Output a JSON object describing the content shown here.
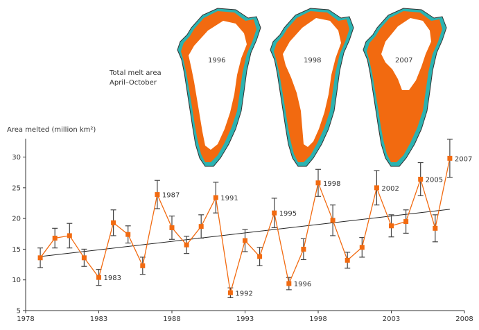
{
  "chart_data": {
    "type": "line",
    "ylabel": "Area melted (million km²)",
    "x_ticks": [
      1978,
      1983,
      1988,
      1993,
      1998,
      2003,
      2008
    ],
    "y_ticks": [
      5,
      10,
      15,
      20,
      25,
      30
    ],
    "xlim": [
      1978,
      2008
    ],
    "ylim": [
      5,
      33
    ],
    "series": [
      {
        "x": [
          1979,
          1980,
          1981,
          1982,
          1983,
          1984,
          1985,
          1986,
          1987,
          1988,
          1989,
          1990,
          1991,
          1992,
          1993,
          1994,
          1995,
          1996,
          1997,
          1998,
          1999,
          2000,
          2001,
          2002,
          2003,
          2004,
          2005,
          2006,
          2007
        ],
        "y": [
          13.6,
          16.8,
          17.2,
          13.6,
          10.4,
          19.3,
          17.4,
          12.3,
          23.9,
          18.5,
          15.7,
          18.7,
          23.4,
          7.9,
          16.4,
          13.8,
          20.9,
          9.4,
          15.0,
          25.8,
          19.7,
          13.2,
          15.3,
          25.0,
          18.8,
          19.5,
          26.4,
          18.4,
          29.8
        ],
        "error": [
          1.6,
          1.6,
          2.0,
          1.4,
          1.3,
          2.1,
          1.4,
          1.4,
          2.3,
          1.9,
          1.4,
          1.9,
          2.5,
          0.8,
          1.8,
          1.5,
          2.4,
          1.0,
          1.7,
          2.2,
          2.5,
          1.3,
          1.6,
          2.8,
          1.8,
          1.9,
          2.7,
          2.2,
          3.1
        ]
      }
    ],
    "point_labels": [
      {
        "x": 1983,
        "label": "1983"
      },
      {
        "x": 1987,
        "label": "1987"
      },
      {
        "x": 1991,
        "label": "1991"
      },
      {
        "x": 1992,
        "label": "1992"
      },
      {
        "x": 1995,
        "label": "1995"
      },
      {
        "x": 1996,
        "label": "1996"
      },
      {
        "x": 1998,
        "label": "1998"
      },
      {
        "x": 2002,
        "label": "2002"
      },
      {
        "x": 2005,
        "label": "2005"
      },
      {
        "x": 2007,
        "label": "2007"
      }
    ],
    "trend": {
      "x": [
        1979,
        2007
      ],
      "y": [
        13.8,
        21.5
      ]
    },
    "colors": {
      "line": "#f26a10",
      "marker": "#f26a10",
      "error_bar": "#444444",
      "trend": "#222222",
      "melt": "#f26a10",
      "ice": "#ffffff",
      "coast": "#2bb3b1"
    }
  },
  "inset": {
    "title_line1": "Total melt area",
    "title_line2": "April–October",
    "maps": [
      {
        "label": "1996"
      },
      {
        "label": "1998"
      },
      {
        "label": "2007"
      }
    ]
  }
}
